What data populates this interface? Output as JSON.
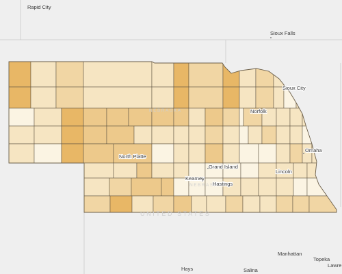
{
  "map": {
    "colors": {
      "background": "#efefef",
      "land_outside": "#e9e9e9",
      "state_line": "#c9c9c9",
      "county_border": "#5c5242",
      "class_1": "#fbf4e3",
      "class_2": "#f6e5c2",
      "class_3": "#f1d6a4",
      "class_4": "#edc98b",
      "class_5": "#e8b766"
    },
    "city_labels": {
      "rapid_city": "Rapid City",
      "sioux_falls": "Sioux Falls",
      "sioux_city": "Sioux City",
      "norfolk": "Norfolk",
      "omaha": "Omaha",
      "north_platte": "North Platte",
      "grand_island": "Grand Island",
      "lincoln": "Lincoln",
      "kearney": "Kearney",
      "hastings": "Hastings",
      "manhattan": "Manhattan",
      "topeka": "Topeka",
      "lawrence": "Lawre",
      "hays": "Hays",
      "salina": "Salina"
    },
    "watermarks": {
      "state": "NEBRASKA",
      "state_south": "NEBRASKA",
      "country": "UNITED STATES"
    },
    "counties": [
      {
        "row": 1,
        "classes": [
          5,
          2,
          3,
          2,
          2,
          5,
          3,
          5,
          2,
          3,
          2
        ]
      },
      {
        "row": 2,
        "classes": [
          5,
          2,
          3,
          2,
          2,
          5,
          3,
          5,
          2,
          3,
          2,
          1,
          2,
          2
        ]
      },
      {
        "row": 3,
        "classes": [
          1,
          2,
          5,
          4,
          4,
          4,
          4,
          4,
          2,
          4,
          3,
          1,
          3,
          2,
          2,
          2,
          2
        ]
      },
      {
        "row": 4,
        "classes": [
          2,
          2,
          5,
          4,
          4,
          2,
          2,
          2,
          2,
          3,
          2,
          1,
          2,
          3,
          2,
          2,
          1
        ]
      },
      {
        "row": 5,
        "classes": [
          2,
          1,
          5,
          4,
          4,
          1,
          2,
          2,
          4,
          2,
          1,
          1,
          2,
          3,
          2,
          2,
          1
        ]
      },
      {
        "row": 6,
        "classes": [
          2,
          2,
          4,
          2,
          2,
          1,
          1,
          1,
          1,
          2,
          2,
          2,
          2,
          2,
          3
        ]
      },
      {
        "row": 7,
        "classes": [
          2,
          3,
          4,
          4,
          1,
          1,
          1,
          2,
          2,
          2,
          2,
          1,
          1
        ]
      },
      {
        "row": 8,
        "classes": [
          3,
          5,
          2,
          3,
          4,
          2,
          2,
          3,
          2,
          2,
          3,
          3,
          3
        ]
      }
    ]
  }
}
